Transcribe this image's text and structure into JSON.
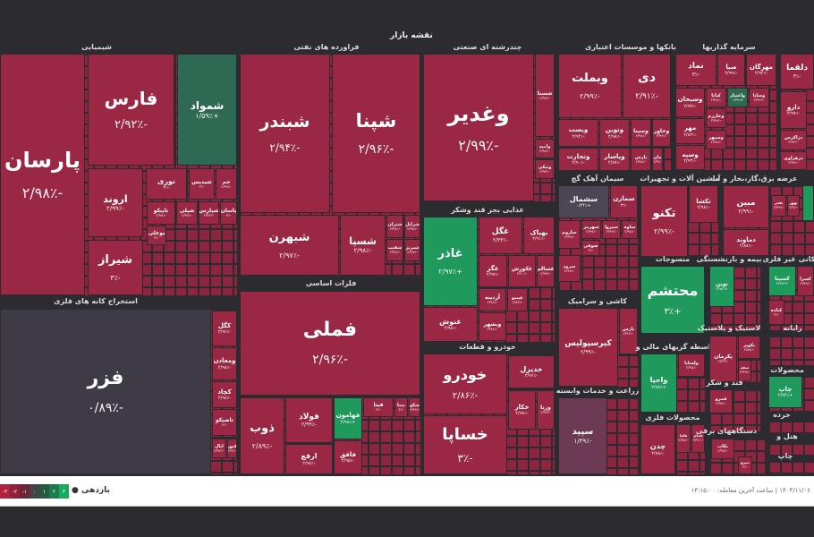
{
  "title": "نقشه بازار",
  "colors": {
    "down": "#9a2744",
    "up": "#2e6a53",
    "up_strong": "#1f9a5c",
    "neutral": "#3f3b46",
    "slight_down": "#6c3a52",
    "slight_up": "#4d4553"
  },
  "sectors": [
    {
      "name": "شیمیایی",
      "tiles": [
        {
          "symbol": "پارسان",
          "change": "-۲/۹۸٪",
          "tone": "down"
        },
        {
          "symbol": "فارس",
          "change": "-۲/۹۲٪",
          "tone": "down"
        },
        {
          "symbol": "شمواد",
          "change": "+۱/۵۹٪",
          "tone": "up"
        },
        {
          "symbol": "اروند",
          "change": "-۲/۹۹٪",
          "tone": "down"
        },
        {
          "symbol": "شیراز",
          "change": "-۳٪",
          "tone": "down"
        },
        {
          "symbol": "نوری",
          "change": "-۳٪",
          "tone": "down"
        },
        {
          "symbol": "شیدیس",
          "change": "-۳٪",
          "tone": "down"
        },
        {
          "symbol": "جم",
          "change": "-۲/۹۹٪",
          "tone": "down"
        },
        {
          "symbol": "تاپیکو",
          "change": "-۲/۹۹٪",
          "tone": "down"
        },
        {
          "symbol": "شپلی",
          "change": "-۲/۹۷٪",
          "tone": "down"
        },
        {
          "symbol": "شپارس",
          "change": "-۲/۹۳٪",
          "tone": "down"
        },
        {
          "symbol": "پاسان",
          "change": "-۳٪",
          "tone": "down"
        },
        {
          "symbol": "بوعلی",
          "change": "-۳٪",
          "tone": "down"
        }
      ]
    },
    {
      "name": "فراورده های نفتی",
      "tiles": [
        {
          "symbol": "شبندر",
          "change": "-۲/۹۴٪",
          "tone": "down"
        },
        {
          "symbol": "شپنا",
          "change": "-۲/۹۶٪",
          "tone": "down"
        },
        {
          "symbol": "شبهرن",
          "change": "-۲/۹۷٪",
          "tone": "down"
        },
        {
          "symbol": "شسپا",
          "change": "-۲/۹۸٪",
          "tone": "down"
        },
        {
          "symbol": "شتران",
          "change": "-۲/۹۸٪",
          "tone": "down"
        },
        {
          "symbol": "شرانل",
          "change": "-۲/۹۸٪",
          "tone": "down"
        },
        {
          "symbol": "شفنت",
          "change": "-۲/۹۸٪",
          "tone": "down"
        },
        {
          "symbol": "شبریز",
          "change": "-۲/۹۹٪",
          "tone": "down"
        }
      ]
    },
    {
      "name": "فلزات اساسی",
      "tiles": [
        {
          "symbol": "فملی",
          "change": "-۲/۹۶٪",
          "tone": "down"
        },
        {
          "symbol": "ذوب",
          "change": "-۲/۸۹٪",
          "tone": "down"
        },
        {
          "symbol": "فولاد",
          "change": "-۲/۹۹٪",
          "tone": "down"
        },
        {
          "symbol": "ارفع",
          "change": "-۲/۹۸٪",
          "tone": "down"
        },
        {
          "symbol": "فهامون",
          "change": "+۲/۹۸٪",
          "tone": "up_strong"
        },
        {
          "symbol": "فاقق",
          "change": "-۲/۹۵٪",
          "tone": "down"
        },
        {
          "symbol": "فیتا",
          "change": "-۳٪",
          "tone": "down"
        },
        {
          "symbol": "مبنا",
          "change": "-۳٪",
          "tone": "down"
        },
        {
          "symbol": "سکو",
          "change": "-۲/۹۹٪",
          "tone": "down"
        }
      ]
    },
    {
      "name": "استخراج کانه های فلزی",
      "tiles": [
        {
          "symbol": "فزر",
          "change": "-۰/۸۹٪",
          "tone": "neutral"
        },
        {
          "symbol": "کگل",
          "change": "-۲/۹۶٪",
          "tone": "down"
        },
        {
          "symbol": "ومعادن",
          "change": "-۲/۹۸٪",
          "tone": "down"
        },
        {
          "symbol": "کچاد",
          "change": "-۲/۹۸٪",
          "tone": "down"
        },
        {
          "symbol": "تاصیکو",
          "change": "-۳٪",
          "tone": "down"
        },
        {
          "symbol": "ابال",
          "change": "-۲/۹۶٪",
          "tone": "down"
        },
        {
          "symbol": "کنور",
          "change": "-۲/۹٪",
          "tone": "down"
        }
      ]
    },
    {
      "name": "چندرشته ای صنعتی",
      "tiles": [
        {
          "symbol": "وغدیر",
          "change": "-۲/۹۹٪",
          "tone": "down"
        },
        {
          "symbol": "شستا",
          "change": "-۲/۹۹٪",
          "tone": "down"
        },
        {
          "symbol": "وامید",
          "change": "-۲/۸۸٪",
          "tone": "down"
        },
        {
          "symbol": "ونیکی",
          "change": "-۲/۹۳٪",
          "tone": "down"
        }
      ]
    },
    {
      "name": "غذایی بجز قند وشکر",
      "tiles": [
        {
          "symbol": "غاذر",
          "change": "+۲/۹۷٪",
          "tone": "up_strong"
        },
        {
          "symbol": "غگل",
          "change": "-۲/۳۳٪",
          "tone": "down"
        },
        {
          "symbol": "بهپاک",
          "change": "-۲/۹۱٪",
          "tone": "down"
        },
        {
          "symbol": "غگز",
          "change": "-۲/۹۷٪",
          "tone": "down"
        },
        {
          "symbol": "غکورش",
          "change": "-۲/۹۰٪",
          "tone": "down"
        },
        {
          "symbol": "غسالم",
          "change": "-۲/۹۹٪",
          "tone": "down"
        },
        {
          "symbol": "آردینه",
          "change": "-۲/۹۸٪",
          "tone": "down"
        },
        {
          "symbol": "غپینو",
          "change": "-۲/۸۷٪",
          "tone": "down"
        },
        {
          "symbol": "غنوش",
          "change": "-۲/۹۸٪",
          "tone": "down"
        },
        {
          "symbol": "وبشهر",
          "change": "-۲/۹۸٪",
          "tone": "down"
        }
      ]
    },
    {
      "name": "خودرو و قطعات",
      "tiles": [
        {
          "symbol": "خودرو",
          "change": "-۲/۸۶٪",
          "tone": "down"
        },
        {
          "symbol": "خساپا",
          "change": "-۳٪",
          "tone": "down"
        },
        {
          "symbol": "خدیزل",
          "change": "-۲/۹۶٪",
          "tone": "down"
        },
        {
          "symbol": "خکار",
          "change": "-۲/۹۸٪",
          "tone": "down"
        },
        {
          "symbol": "ورنا",
          "change": "-۲/۹۹٪",
          "tone": "down"
        }
      ]
    },
    {
      "name": "بانکها و موسسات اعتباری",
      "tiles": [
        {
          "symbol": "وبملت",
          "change": "-۲/۹۹٪",
          "tone": "down"
        },
        {
          "symbol": "دی",
          "change": "-۲/۹۱٪",
          "tone": "down"
        },
        {
          "symbol": "ویست",
          "change": "-۲/۹۴٪",
          "tone": "down"
        },
        {
          "symbol": "ونوین",
          "change": "-۲/۹۸٪",
          "tone": "down"
        },
        {
          "symbol": "وسینا",
          "change": "-۲/۹۸٪",
          "tone": "down"
        },
        {
          "symbol": "وخاور",
          "change": "-۲/۹۹٪",
          "tone": "down"
        },
        {
          "symbol": "وتجارت",
          "change": "-۲/۹۰٪",
          "tone": "down"
        },
        {
          "symbol": "وپاسار",
          "change": "-۲/۸۷٪",
          "tone": "down"
        },
        {
          "symbol": "پارس",
          "change": "-۲/۹۸٪",
          "tone": "down"
        },
        {
          "symbol": "مان",
          "change": "-۲/۹٪",
          "tone": "down"
        }
      ]
    },
    {
      "name": "سرمایه گذاریها",
      "tiles": [
        {
          "symbol": "نماد",
          "change": "-۳٪",
          "tone": "down"
        },
        {
          "symbol": "صبا",
          "change": "-۲/۹۹٪",
          "tone": "down"
        },
        {
          "symbol": "مهرگان",
          "change": "-۲/۹۴٪",
          "tone": "down"
        },
        {
          "symbol": "وسبحان",
          "change": "-۲/۹۷٪",
          "tone": "down"
        },
        {
          "symbol": "کیانا",
          "change": "-۲/۹۸٪",
          "tone": "down"
        },
        {
          "symbol": "واعتبار",
          "change": "+۰/۳۹٪",
          "tone": "up"
        },
        {
          "symbol": "وساپا",
          "change": "-۲/۹۴٪",
          "tone": "down"
        },
        {
          "symbol": "وخارزم",
          "change": "-۲/۹۹٪",
          "tone": "down"
        },
        {
          "symbol": "مهر",
          "change": "-۲/۸۲٪",
          "tone": "down"
        },
        {
          "symbol": "وسپهر",
          "change": "-۲/۹۸٪",
          "tone": "down"
        },
        {
          "symbol": "وسپه",
          "change": "-۲/۹۴٪",
          "tone": "down"
        }
      ]
    },
    {
      "name": "",
      "tiles": [
        {
          "symbol": "دلقما",
          "change": "-۳٪",
          "tone": "down"
        },
        {
          "symbol": "دارو",
          "change": "-۲/۹۷٪",
          "tone": "down"
        },
        {
          "symbol": "دزاکرس",
          "change": "-۲/۹۴٪",
          "tone": "down"
        },
        {
          "symbol": "دزهراوی",
          "change": "-۲/۹۴٪",
          "tone": "down"
        }
      ]
    },
    {
      "name": "سیمان آهک گچ",
      "tiles": [
        {
          "symbol": "سشمال",
          "change": "+۰/۲۴٪",
          "tone": "slight_up"
        },
        {
          "symbol": "سمازن",
          "change": "-۳٪",
          "tone": "down"
        },
        {
          "symbol": "ساروم",
          "change": "-۲/۹۹٪",
          "tone": "down"
        },
        {
          "symbol": "سهرمز",
          "change": "-۲/۹۹٪",
          "tone": "down"
        },
        {
          "symbol": "سیزوا",
          "change": "-۲/۹۹٪",
          "tone": "down"
        },
        {
          "symbol": "ساوه",
          "change": "-۲/۹۸٪",
          "tone": "down"
        },
        {
          "symbol": "صوفی",
          "change": "-۳٪",
          "tone": "down"
        },
        {
          "symbol": "سرود",
          "change": "-۲/۹۸٪",
          "tone": "down"
        }
      ]
    },
    {
      "name": "کاشی و سرامیک",
      "tiles": [
        {
          "symbol": "کیرسپولیس",
          "change": "-۲/۹۹٪",
          "tone": "down"
        },
        {
          "symbol": "بارس",
          "change": "-۲/۹۶٪",
          "tone": "down"
        }
      ]
    },
    {
      "name": "زراعت و خدمات وابسته",
      "tiles": [
        {
          "symbol": "سپید",
          "change": "-۱/۳۹٪",
          "tone": "slight_down"
        }
      ]
    },
    {
      "name": "ماشین آلات و تجهیزات",
      "tiles": [
        {
          "symbol": "تکنو",
          "change": "-۲/۹۹٪",
          "tone": "down"
        },
        {
          "symbol": "تکشا",
          "change": "-۲/۹۸٪",
          "tone": "down"
        }
      ]
    },
    {
      "name": "منسوجات",
      "tiles": [
        {
          "symbol": "محتشم",
          "change": "+۳٪",
          "tone": "up_strong"
        }
      ]
    },
    {
      "name": "واسطه گریهای مالی و",
      "tiles": [
        {
          "symbol": "واحیا",
          "change": "+۲/۹۸٪",
          "tone": "up_strong"
        },
        {
          "symbol": "ولساپا",
          "change": "-۲/۹۸٪",
          "tone": "down"
        }
      ]
    },
    {
      "name": "محصولات فلزی",
      "tiles": [
        {
          "symbol": "چدن",
          "change": "-۲/۹۸٪",
          "tone": "down"
        },
        {
          "symbol": "فاما",
          "change": "-۲/۹۸٪",
          "tone": "down"
        },
        {
          "symbol": "فجام",
          "change": "-۲/۹۱٪",
          "tone": "down"
        }
      ]
    },
    {
      "name": "عرضه برق،گاز،بخار و آب",
      "tiles": [
        {
          "symbol": "مبین",
          "change": "-۲/۹۹٪",
          "tone": "down"
        },
        {
          "symbol": "دماوند",
          "change": "-۲/۸۸٪",
          "tone": "down"
        },
        {
          "symbol": "بفجر",
          "change": "-۲/۹۹٪",
          "tone": "down"
        },
        {
          "symbol": "بهور",
          "change": "-۲/۹٪",
          "tone": "down"
        }
      ]
    },
    {
      "name": "بیمه و بازنشستگی",
      "tiles": [
        {
          "symbol": "نوین",
          "change": "+۲/۹۸٪",
          "tone": "up_strong"
        }
      ]
    },
    {
      "name": "کانی غیر فلزی",
      "tiles": [
        {
          "symbol": "کسینا",
          "change": "+۲/۹۷٪",
          "tone": "up_strong"
        },
        {
          "symbol": "کسرا",
          "change": "-۲/۹۹٪",
          "tone": "down"
        },
        {
          "symbol": "کباده",
          "change": "-۳٪",
          "tone": "down"
        }
      ]
    },
    {
      "name": "لاستیک و پلاستیک",
      "tiles": [
        {
          "symbol": "پکرمان",
          "change": "-۲/۳۳٪",
          "tone": "down"
        },
        {
          "symbol": "پکویر",
          "change": "-۲/۸۸٪",
          "tone": "down"
        },
        {
          "symbol": "سفه",
          "change": "-۲/۹۹٪",
          "tone": "down"
        }
      ]
    },
    {
      "name": "رایانه",
      "tiles": []
    },
    {
      "name": "محصولات",
      "tiles": [
        {
          "symbol": "چاپ",
          "change": "+۲/۹۴٪",
          "tone": "up_strong"
        }
      ]
    },
    {
      "name": "قند و شکر",
      "tiles": [
        {
          "symbol": "قمرو",
          "change": "-۲/۹۷٪",
          "tone": "down"
        }
      ]
    },
    {
      "name": "خرده",
      "tiles": []
    },
    {
      "name": "دستگاههای برقی",
      "tiles": [
        {
          "symbol": "بکاب",
          "change": "-۲/۹۷٪",
          "tone": "down"
        },
        {
          "symbol": "بنیرو",
          "change": "-۳٪",
          "tone": "down"
        }
      ]
    },
    {
      "name": "هتل و",
      "tiles": []
    },
    {
      "name": "چاپ",
      "tiles": []
    }
  ],
  "footer": {
    "legend_label": "بازدهی ●",
    "legend": [
      {
        "label": "-۳",
        "color": "#b0213f"
      },
      {
        "label": "-۲",
        "color": "#8c2239"
      },
      {
        "label": "-۱",
        "color": "#6b2536"
      },
      {
        "label": "۰",
        "color": "#444448"
      },
      {
        "label": "۱",
        "color": "#245a40"
      },
      {
        "label": "۲",
        "color": "#1d7a4a"
      },
      {
        "label": "۳",
        "color": "#1aaa5d"
      }
    ],
    "status": "۱۴۰۴/۱۱/۰۶ | ساعت آخرین معامله: ۱۳:۱۵:۰۰"
  }
}
